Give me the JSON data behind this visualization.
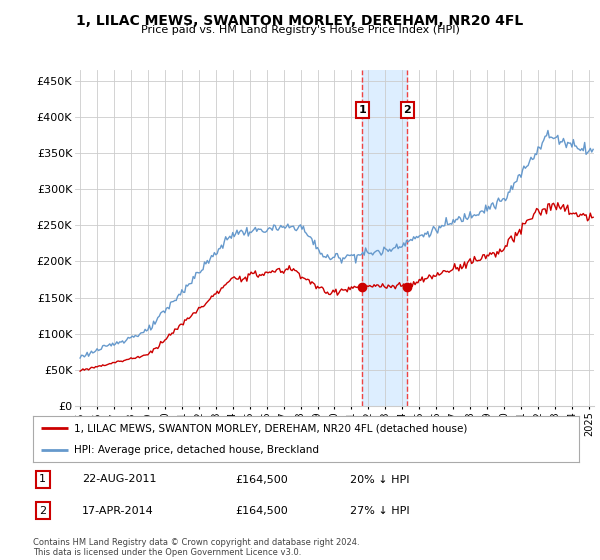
{
  "title": "1, LILAC MEWS, SWANTON MORLEY, DEREHAM, NR20 4FL",
  "subtitle": "Price paid vs. HM Land Registry's House Price Index (HPI)",
  "ylabel_ticks": [
    "£0",
    "£50K",
    "£100K",
    "£150K",
    "£200K",
    "£250K",
    "£300K",
    "£350K",
    "£400K",
    "£450K"
  ],
  "ytick_values": [
    0,
    50000,
    100000,
    150000,
    200000,
    250000,
    300000,
    350000,
    400000,
    450000
  ],
  "ylim": [
    0,
    465000
  ],
  "xlim_start": 1994.7,
  "xlim_end": 2025.3,
  "transaction1": {
    "date_num": 2011.64,
    "price": 164500,
    "label": "1"
  },
  "transaction2": {
    "date_num": 2014.29,
    "price": 164500,
    "label": "2"
  },
  "legend_property": "1, LILAC MEWS, SWANTON MORLEY, DEREHAM, NR20 4FL (detached house)",
  "legend_hpi": "HPI: Average price, detached house, Breckland",
  "table_rows": [
    {
      "num": "1",
      "date": "22-AUG-2011",
      "price": "£164,500",
      "pct": "20% ↓ HPI"
    },
    {
      "num": "2",
      "date": "17-APR-2014",
      "price": "£164,500",
      "pct": "27% ↓ HPI"
    }
  ],
  "footnote": "Contains HM Land Registry data © Crown copyright and database right 2024.\nThis data is licensed under the Open Government Licence v3.0.",
  "property_color": "#cc0000",
  "hpi_color": "#6699cc",
  "highlight_color": "#ddeeff",
  "vline_color": "#ee4444",
  "dot_color": "#cc0000",
  "background_color": "#ffffff",
  "grid_color": "#cccccc"
}
